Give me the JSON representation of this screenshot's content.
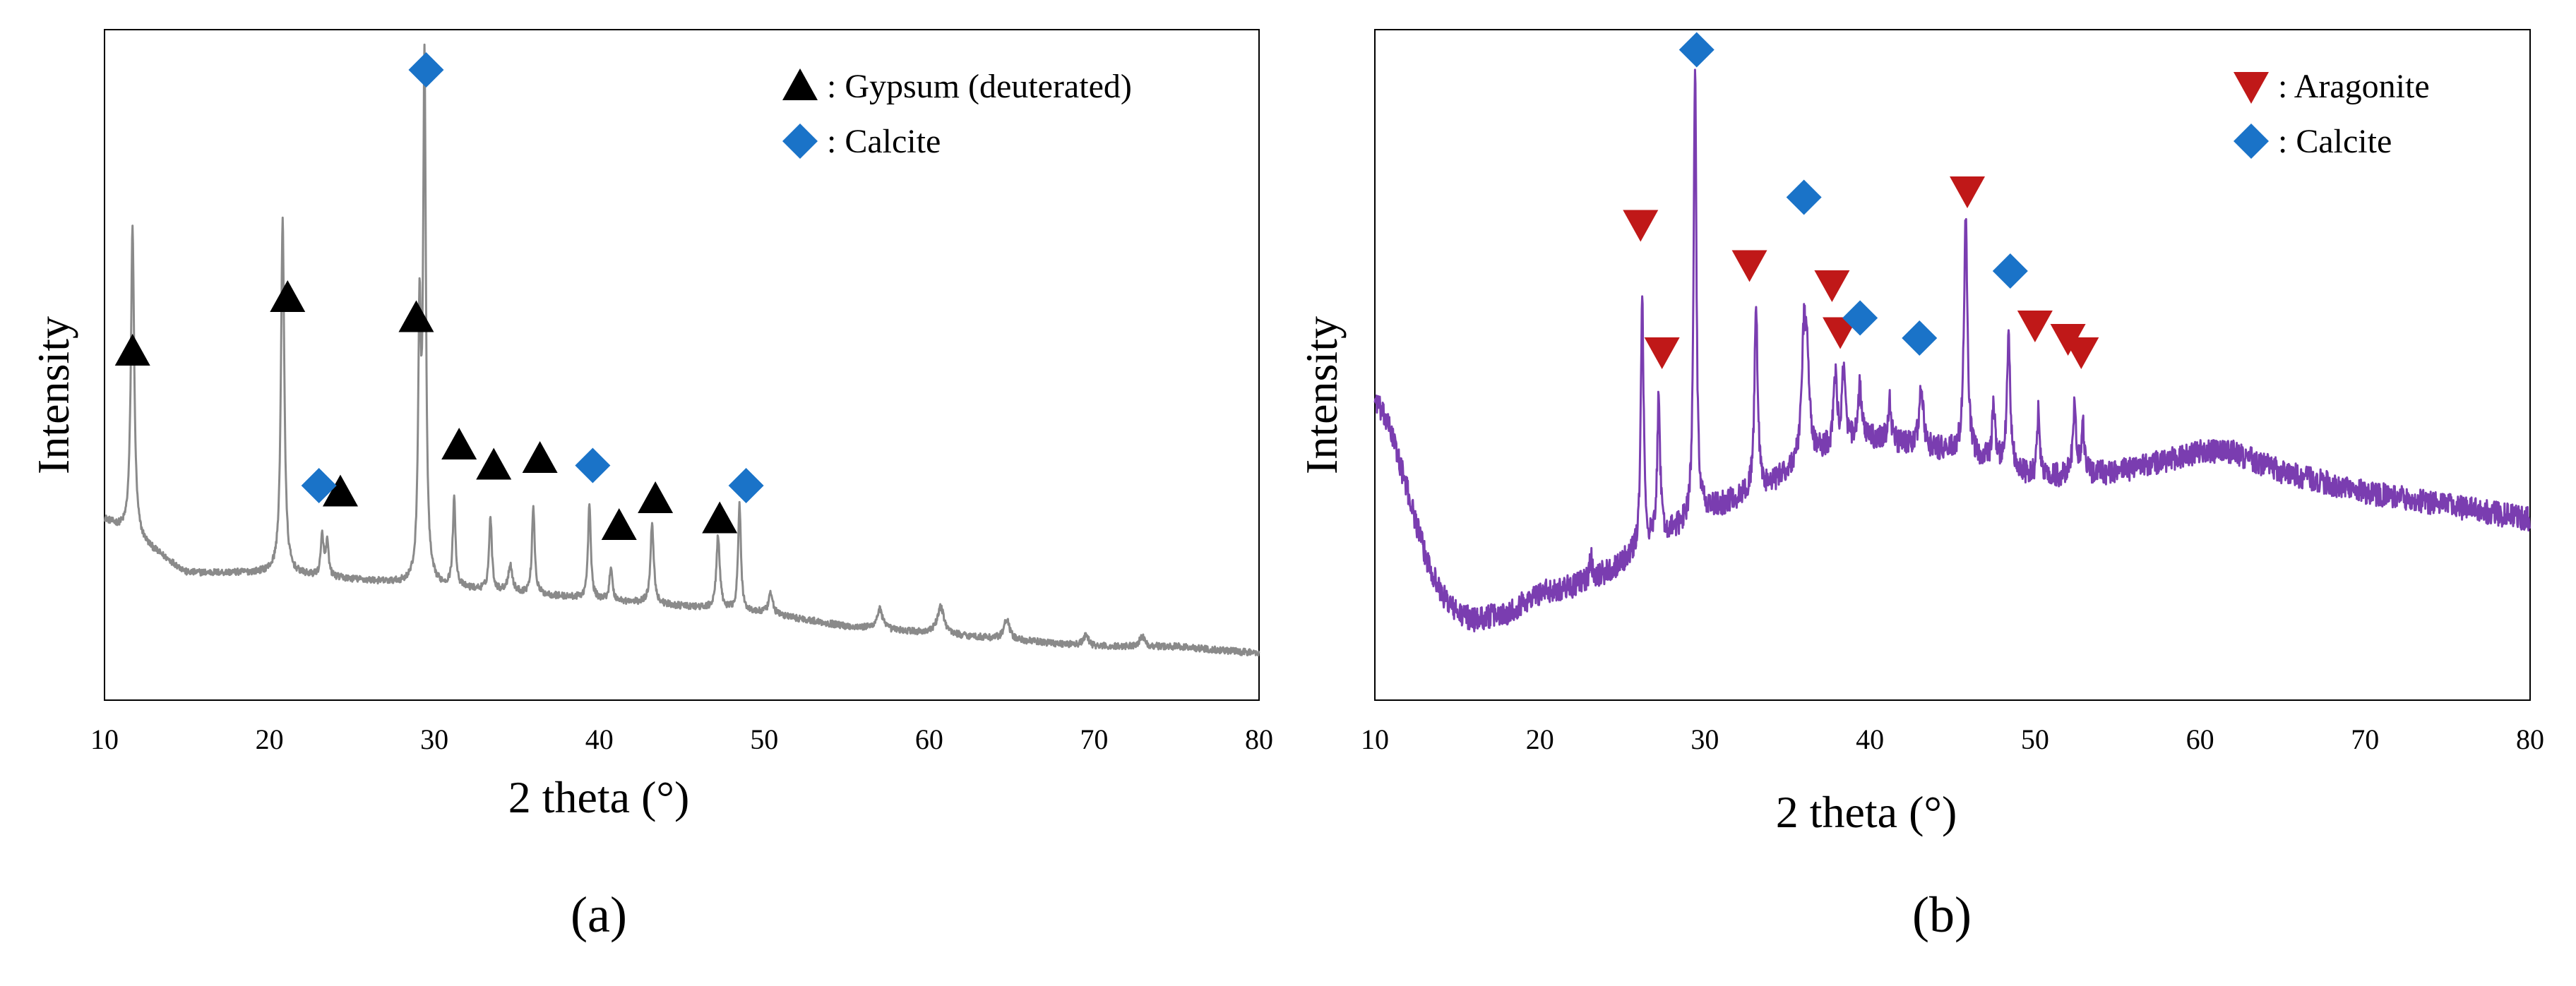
{
  "figure_labels": [
    "(a)",
    "(b)"
  ],
  "colors": {
    "pattern_a": "#8a8a8a",
    "pattern_b": "#7a3db0",
    "gypsum": "#000000",
    "calcite": "#1a73c8",
    "aragonite": "#c01818",
    "axis": "#000000"
  },
  "chart_data": [
    {
      "type": "line",
      "panel": "(a)",
      "xlabel": "2 theta (°)",
      "ylabel": "Intensity",
      "xlim": [
        10,
        80
      ],
      "ylim": [
        0,
        100
      ],
      "xticks": [
        10,
        20,
        30,
        40,
        50,
        60,
        70,
        80
      ],
      "legend_position": "top-right",
      "legend": [
        {
          "marker": "triangle-up",
          "label": ": Gypsum (deuterated)",
          "color": "#000000"
        },
        {
          "marker": "diamond",
          "label": ": Calcite",
          "color": "#1a73c8"
        }
      ],
      "baseline": [
        [
          10,
          27
        ],
        [
          12,
          24
        ],
        [
          15,
          19
        ],
        [
          20,
          19
        ],
        [
          25,
          18
        ],
        [
          30,
          17
        ],
        [
          35,
          16
        ],
        [
          40,
          15
        ],
        [
          45,
          14
        ],
        [
          50,
          13
        ],
        [
          55,
          11
        ],
        [
          60,
          10
        ],
        [
          65,
          9
        ],
        [
          70,
          8
        ],
        [
          75,
          8
        ],
        [
          80,
          7
        ]
      ],
      "peaks": [
        {
          "x": 11.7,
          "h": 46,
          "w": 0.12
        },
        {
          "x": 20.8,
          "h": 53,
          "w": 0.12
        },
        {
          "x": 23.2,
          "h": 6,
          "w": 0.1
        },
        {
          "x": 23.5,
          "h": 5,
          "w": 0.1
        },
        {
          "x": 29.1,
          "h": 38,
          "w": 0.1
        },
        {
          "x": 29.4,
          "h": 77,
          "w": 0.1
        },
        {
          "x": 31.2,
          "h": 13,
          "w": 0.1
        },
        {
          "x": 33.4,
          "h": 11,
          "w": 0.1
        },
        {
          "x": 34.6,
          "h": 4,
          "w": 0.15
        },
        {
          "x": 36.0,
          "h": 13,
          "w": 0.1
        },
        {
          "x": 39.4,
          "h": 14,
          "w": 0.1
        },
        {
          "x": 40.7,
          "h": 5,
          "w": 0.1
        },
        {
          "x": 43.2,
          "h": 12,
          "w": 0.12
        },
        {
          "x": 47.2,
          "h": 11,
          "w": 0.12
        },
        {
          "x": 48.5,
          "h": 16,
          "w": 0.1
        },
        {
          "x": 50.4,
          "h": 3,
          "w": 0.15
        },
        {
          "x": 57.0,
          "h": 3,
          "w": 0.2
        },
        {
          "x": 60.7,
          "h": 4,
          "w": 0.25
        },
        {
          "x": 64.7,
          "h": 3,
          "w": 0.2
        },
        {
          "x": 69.5,
          "h": 1.5,
          "w": 0.2
        },
        {
          "x": 72.9,
          "h": 1.5,
          "w": 0.2
        }
      ],
      "markers": [
        {
          "phase": "Gypsum (deuterated)",
          "symbol": "triangle-up",
          "x": 11.7,
          "y": 52
        },
        {
          "phase": "Gypsum (deuterated)",
          "symbol": "triangle-up",
          "x": 21.1,
          "y": 60
        },
        {
          "phase": "Gypsum (deuterated)",
          "symbol": "triangle-up",
          "x": 24.3,
          "y": 31
        },
        {
          "phase": "Gypsum (deuterated)",
          "symbol": "triangle-up",
          "x": 28.9,
          "y": 57
        },
        {
          "phase": "Gypsum (deuterated)",
          "symbol": "triangle-up",
          "x": 31.5,
          "y": 38
        },
        {
          "phase": "Gypsum (deuterated)",
          "symbol": "triangle-up",
          "x": 33.6,
          "y": 35
        },
        {
          "phase": "Gypsum (deuterated)",
          "symbol": "triangle-up",
          "x": 36.4,
          "y": 36
        },
        {
          "phase": "Gypsum (deuterated)",
          "symbol": "triangle-up",
          "x": 41.2,
          "y": 26
        },
        {
          "phase": "Gypsum (deuterated)",
          "symbol": "triangle-up",
          "x": 43.4,
          "y": 30
        },
        {
          "phase": "Gypsum (deuterated)",
          "symbol": "triangle-up",
          "x": 47.3,
          "y": 27
        },
        {
          "phase": "Calcite",
          "symbol": "diamond",
          "x": 23.0,
          "y": 32
        },
        {
          "phase": "Calcite",
          "symbol": "diamond",
          "x": 29.5,
          "y": 94
        },
        {
          "phase": "Calcite",
          "symbol": "diamond",
          "x": 39.6,
          "y": 35
        },
        {
          "phase": "Calcite",
          "symbol": "diamond",
          "x": 48.9,
          "y": 32
        }
      ]
    },
    {
      "type": "line",
      "panel": "(b)",
      "xlabel": "2 theta (°)",
      "ylabel": "Intensity",
      "xlim": [
        10,
        80
      ],
      "ylim": [
        0,
        100
      ],
      "xticks": [
        10,
        20,
        30,
        40,
        50,
        60,
        70,
        80
      ],
      "legend_position": "top-right",
      "legend": [
        {
          "marker": "triangle-down",
          "label": ": Aragonite",
          "color": "#c01818"
        },
        {
          "marker": "diamond",
          "label": ": Calcite",
          "color": "#1a73c8"
        }
      ],
      "baseline": [
        [
          10,
          45
        ],
        [
          11,
          40
        ],
        [
          12,
          31
        ],
        [
          13,
          22
        ],
        [
          14,
          16
        ],
        [
          15,
          13
        ],
        [
          16,
          12
        ],
        [
          18,
          13
        ],
        [
          20,
          16
        ],
        [
          22,
          17
        ],
        [
          24,
          19
        ],
        [
          26,
          22
        ],
        [
          28,
          25
        ],
        [
          30,
          28
        ],
        [
          32,
          30
        ],
        [
          34,
          32
        ],
        [
          36,
          36
        ],
        [
          38,
          38
        ],
        [
          40,
          39
        ],
        [
          42,
          38
        ],
        [
          45,
          37
        ],
        [
          48,
          35
        ],
        [
          50,
          33
        ],
        [
          55,
          34
        ],
        [
          60,
          37
        ],
        [
          62,
          37
        ],
        [
          65,
          34
        ],
        [
          70,
          31
        ],
        [
          75,
          29
        ],
        [
          80,
          27
        ]
      ],
      "peaks": [
        {
          "x": 23.1,
          "h": 3,
          "w": 0.1
        },
        {
          "x": 26.2,
          "h": 38,
          "w": 0.1
        },
        {
          "x": 27.2,
          "h": 22,
          "w": 0.1
        },
        {
          "x": 29.4,
          "h": 67,
          "w": 0.1
        },
        {
          "x": 33.1,
          "h": 27,
          "w": 0.12
        },
        {
          "x": 36.0,
          "h": 17,
          "w": 0.15
        },
        {
          "x": 36.2,
          "h": 12,
          "w": 0.15
        },
        {
          "x": 37.9,
          "h": 10,
          "w": 0.12
        },
        {
          "x": 38.4,
          "h": 11,
          "w": 0.12
        },
        {
          "x": 39.4,
          "h": 8,
          "w": 0.12
        },
        {
          "x": 41.2,
          "h": 6,
          "w": 0.12
        },
        {
          "x": 43.1,
          "h": 9,
          "w": 0.15
        },
        {
          "x": 45.8,
          "h": 36,
          "w": 0.12
        },
        {
          "x": 47.5,
          "h": 8,
          "w": 0.12
        },
        {
          "x": 48.4,
          "h": 20,
          "w": 0.12
        },
        {
          "x": 50.2,
          "h": 10,
          "w": 0.1
        },
        {
          "x": 52.4,
          "h": 10,
          "w": 0.12
        },
        {
          "x": 52.9,
          "h": 7,
          "w": 0.12
        }
      ],
      "markers": [
        {
          "phase": "Aragonite",
          "symbol": "triangle-down",
          "x": 26.1,
          "y": 71
        },
        {
          "phase": "Aragonite",
          "symbol": "triangle-down",
          "x": 27.4,
          "y": 52
        },
        {
          "phase": "Aragonite",
          "symbol": "triangle-down",
          "x": 32.7,
          "y": 65
        },
        {
          "phase": "Aragonite",
          "symbol": "triangle-down",
          "x": 37.7,
          "y": 62
        },
        {
          "phase": "Aragonite",
          "symbol": "triangle-down",
          "x": 38.2,
          "y": 55
        },
        {
          "phase": "Aragonite",
          "symbol": "triangle-down",
          "x": 45.9,
          "y": 76
        },
        {
          "phase": "Aragonite",
          "symbol": "triangle-down",
          "x": 50.0,
          "y": 56
        },
        {
          "phase": "Aragonite",
          "symbol": "triangle-down",
          "x": 52.0,
          "y": 54
        },
        {
          "phase": "Aragonite",
          "symbol": "triangle-down",
          "x": 52.8,
          "y": 52
        },
        {
          "phase": "Calcite",
          "symbol": "diamond",
          "x": 29.5,
          "y": 97
        },
        {
          "phase": "Calcite",
          "symbol": "diamond",
          "x": 36.0,
          "y": 75
        },
        {
          "phase": "Calcite",
          "symbol": "diamond",
          "x": 39.4,
          "y": 57
        },
        {
          "phase": "Calcite",
          "symbol": "diamond",
          "x": 43.0,
          "y": 54
        },
        {
          "phase": "Calcite",
          "symbol": "diamond",
          "x": 48.5,
          "y": 64
        }
      ]
    }
  ]
}
